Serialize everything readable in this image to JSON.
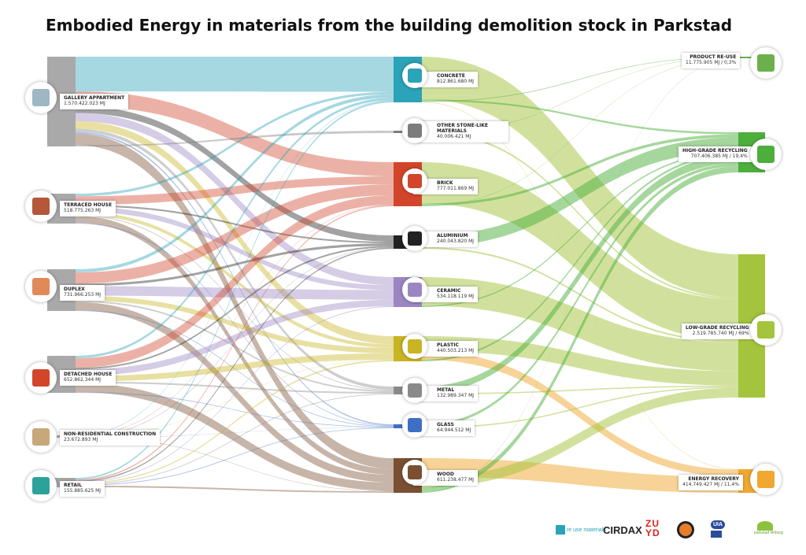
{
  "title": "Embodied Energy in materials from the building demolition stock in Parkstad",
  "sources": [
    {
      "id": "gallery",
      "name": "GALLERY APPARTMENT",
      "value": "1.570.422.023 MJ",
      "icon": "apartment-building-icon"
    },
    {
      "id": "terraced",
      "name": "TERRACED HOUSE",
      "value": "518.775.263 MJ",
      "icon": "terraced-house-icon"
    },
    {
      "id": "duplex",
      "name": "DUPLEX",
      "value": "731.966.253 MJ",
      "icon": "duplex-house-icon"
    },
    {
      "id": "detached",
      "name": "DETACHED HOUSE",
      "value": "652.862.344 MJ",
      "icon": "detached-house-icon"
    },
    {
      "id": "nonres",
      "name": "NON-RESIDENTIAL CONSTRUCTION",
      "value": "23.672.893 MJ",
      "icon": "office-building-icon"
    },
    {
      "id": "retail",
      "name": "RETAIL",
      "value": "155.885.625 MJ",
      "icon": "shop-icon"
    }
  ],
  "materials": [
    {
      "id": "concrete",
      "name": "CONCRETE",
      "value": "812.861.680 MJ",
      "color": "#2ba3b8",
      "icon": "concrete-block-icon"
    },
    {
      "id": "stone",
      "name": "OTHER STONE-LIKE MATERIALS",
      "value": "40.006.421 MJ",
      "color": "#7d7d7d",
      "icon": "stone-cube-icon"
    },
    {
      "id": "brick",
      "name": "BRICK",
      "value": "777.011.869 MJ",
      "color": "#d2452a",
      "icon": "brick-icon"
    },
    {
      "id": "aluminium",
      "name": "ALUMINIUM",
      "value": "240.043.820 MJ",
      "color": "#222222",
      "icon": "aluminium-pipe-icon"
    },
    {
      "id": "ceramic",
      "name": "CERAMIC",
      "value": "534.118.119 MJ",
      "color": "#9b86c2",
      "icon": "toilet-icon"
    },
    {
      "id": "plastic",
      "name": "PLASTIC",
      "value": "440.503.213 MJ",
      "color": "#c9b422",
      "icon": "plastic-pipe-icon"
    },
    {
      "id": "metal",
      "name": "METAL",
      "value": "132.989.347 MJ",
      "color": "#8a8a8a",
      "icon": "metal-beam-icon"
    },
    {
      "id": "glass",
      "name": "GLASS",
      "value": "64.944.512 MJ",
      "color": "#3f6fc4",
      "icon": "glass-window-icon"
    },
    {
      "id": "wood",
      "name": "WOOD",
      "value": "611.238.477 MJ",
      "color": "#7a4f32",
      "icon": "wood-plank-icon"
    }
  ],
  "destinations": [
    {
      "id": "reuse",
      "name": "PRODUCT RE-USE",
      "value": "11.775.905 MJ / 0,3%",
      "color": "#6ab04c",
      "icon": "reuse-arrows-icon"
    },
    {
      "id": "high",
      "name": "HIGH-GRADE RECYCLING",
      "value": "707.406.385 MJ / 19,4%",
      "color": "#4caf3c",
      "icon": "recycle-icon"
    },
    {
      "id": "low",
      "name": "LOW-GRADE RECYCLING",
      "value": "2.519.785.740 MJ / 69%",
      "color": "#a3c43c",
      "icon": "recycle-icon"
    },
    {
      "id": "energy",
      "name": "ENERGY RECOVERY",
      "value": "414.749.427 MJ / 11,4%",
      "color": "#f0a830",
      "icon": "lightning-icon"
    }
  ],
  "logos": [
    "re use materials",
    "CIRDAX",
    "ZUYD",
    "UIA",
    "parkstad limburg"
  ]
}
